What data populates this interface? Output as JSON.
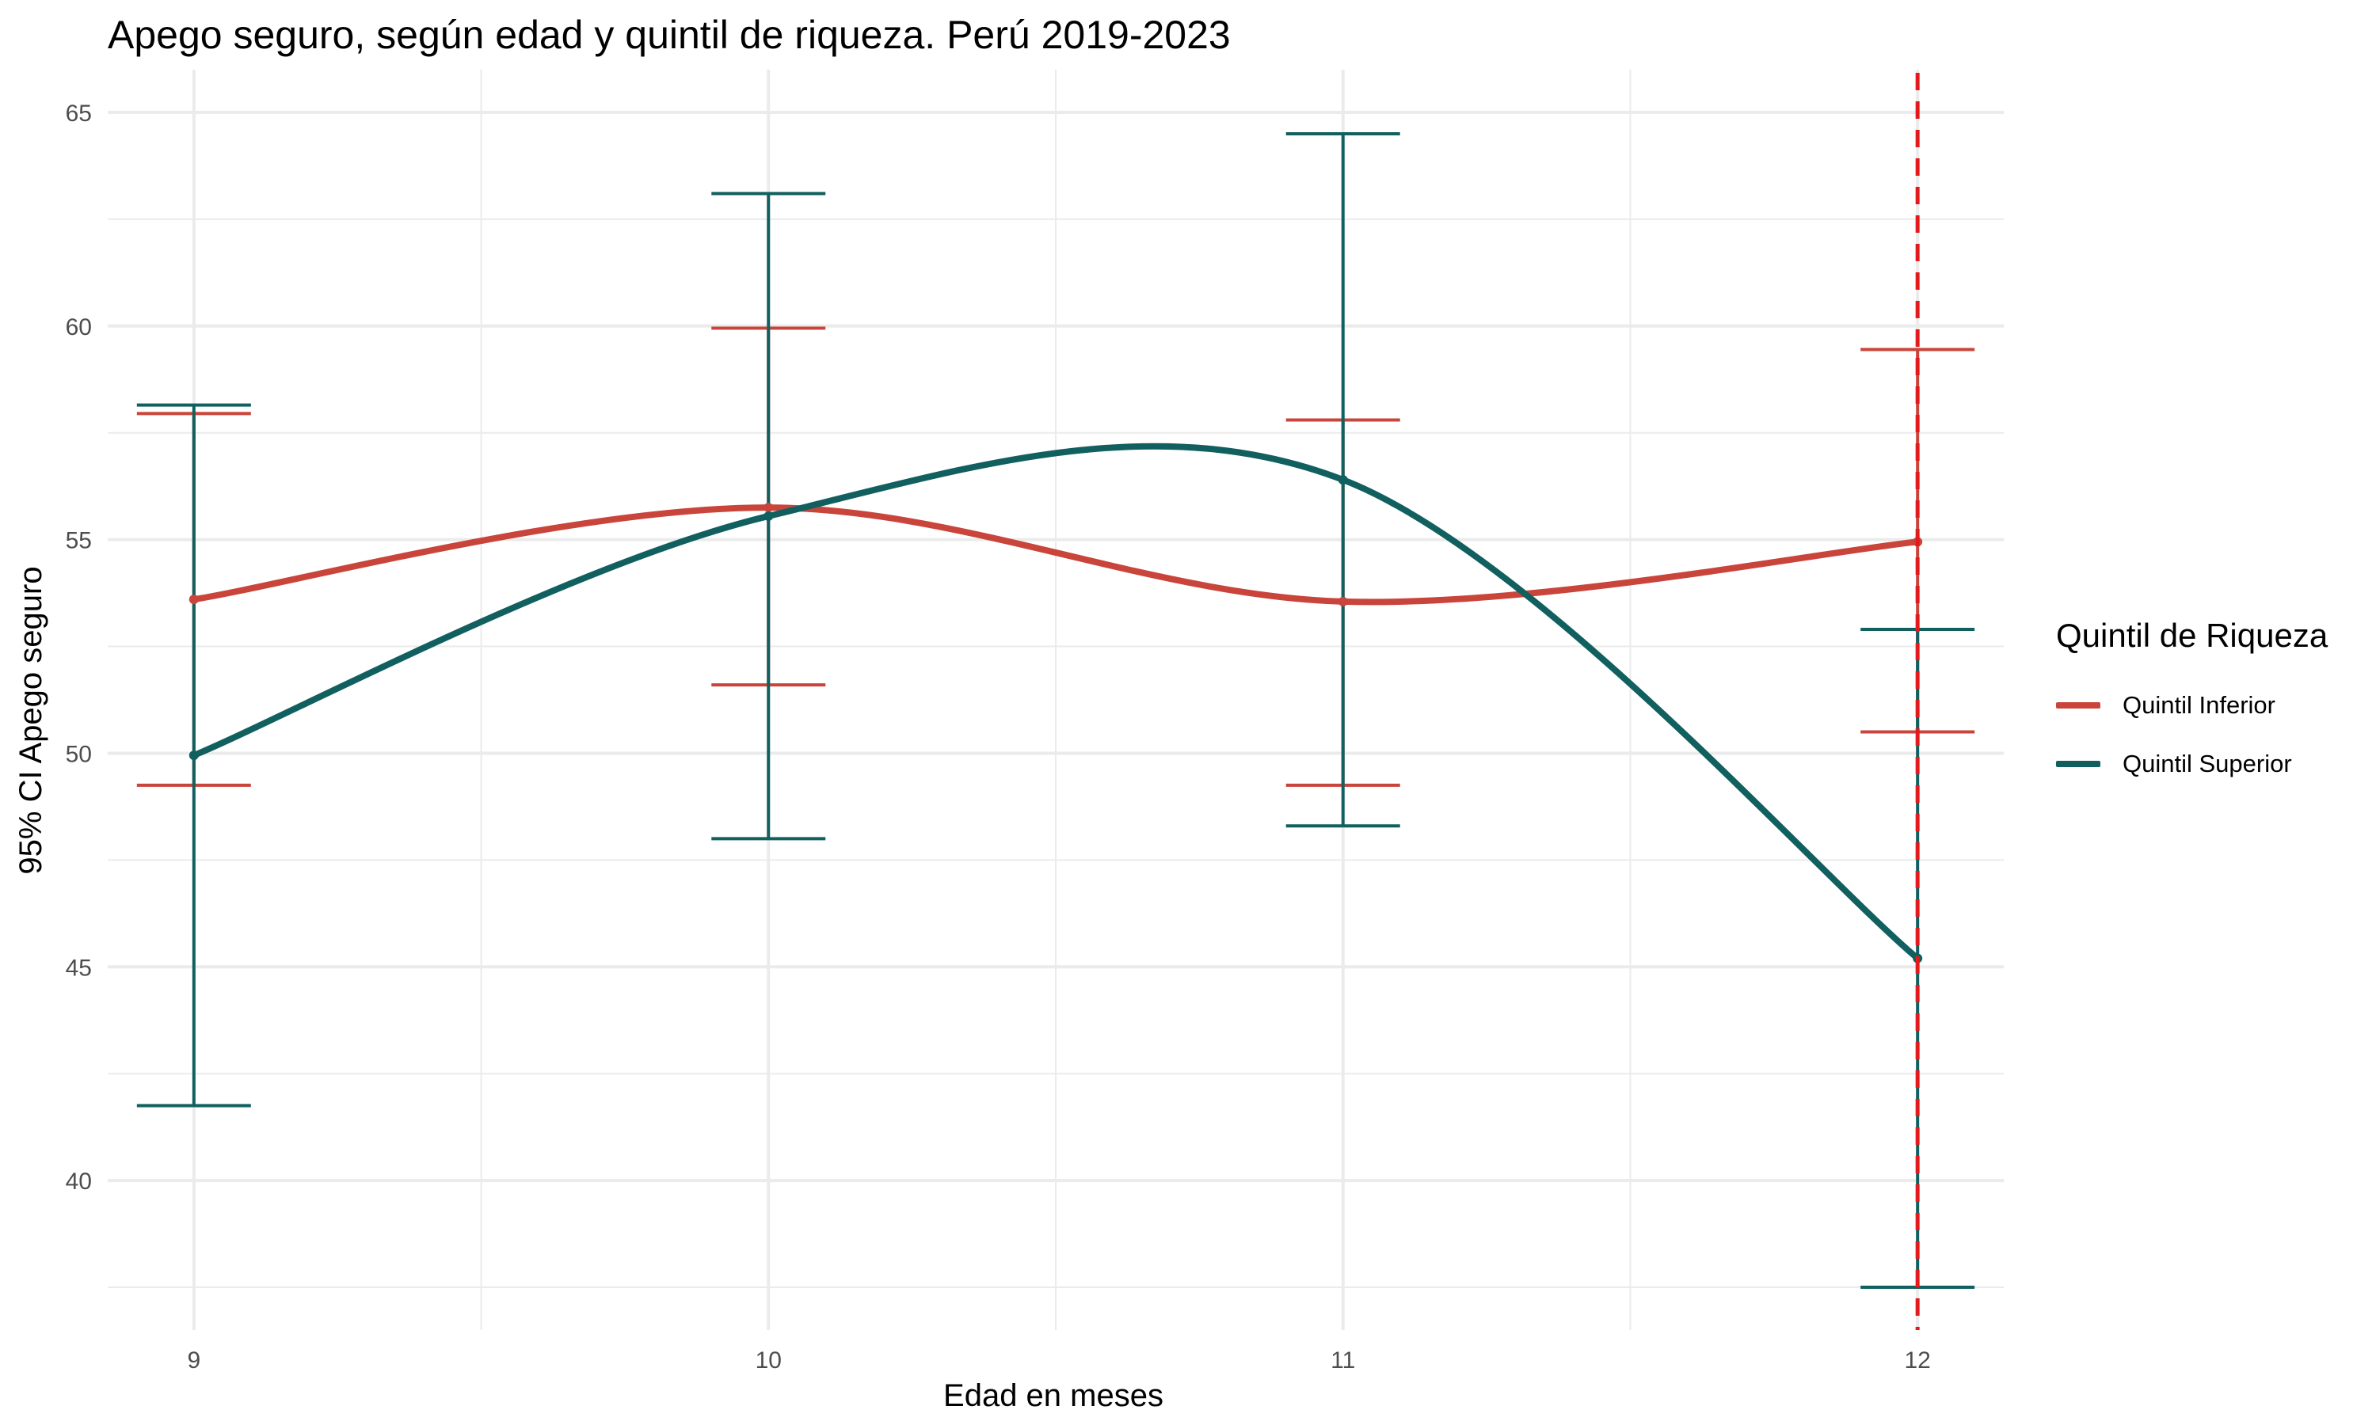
{
  "chart_data": {
    "type": "line",
    "title": "Apego seguro, según edad y quintil de riqueza. Perú 2019-2023",
    "xlabel": "Edad en meses",
    "ylabel": "95% CI Apego seguro",
    "x": [
      9,
      10,
      11,
      12
    ],
    "x_ticks": [
      "9",
      "10",
      "11",
      "12"
    ],
    "y_ticks": [
      "40",
      "45",
      "50",
      "55",
      "60",
      "65"
    ],
    "xlim": [
      8.85,
      12.15
    ],
    "ylim": [
      36.5,
      66
    ],
    "grid": true,
    "legend": {
      "title": "Quintil de Riqueza",
      "position": "right"
    },
    "reference_line": {
      "x": 12,
      "color": "#e31a1c",
      "style": "dashed"
    },
    "series": [
      {
        "name": "Quintil Inferior",
        "color": "#c9453b",
        "values": [
          53.6,
          55.75,
          53.55,
          54.95
        ],
        "ci_lower": [
          49.25,
          51.6,
          49.25,
          50.5
        ],
        "ci_upper": [
          57.95,
          59.95,
          57.8,
          59.45
        ]
      },
      {
        "name": "Quintil Superior",
        "color": "#11605f",
        "values": [
          49.95,
          55.55,
          56.4,
          45.2
        ],
        "ci_lower": [
          41.75,
          48.0,
          48.3,
          37.5
        ],
        "ci_upper": [
          58.15,
          63.1,
          64.5,
          52.9
        ]
      }
    ]
  }
}
